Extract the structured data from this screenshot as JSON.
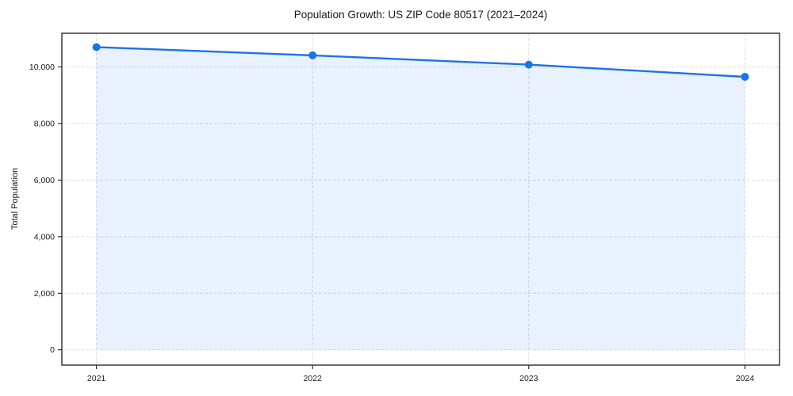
{
  "figure": {
    "title": "Population Growth: US ZIP Code 80517 (2021–2024)",
    "ylabel": "Total Population"
  },
  "chart_data": {
    "type": "line",
    "title": "Population Growth: US ZIP Code 80517 (2021–2024)",
    "xlabel": "",
    "ylabel": "Total Population",
    "x": [
      2021,
      2022,
      2023,
      2024
    ],
    "x_tick_labels": [
      "2021",
      "2022",
      "2023",
      "2024"
    ],
    "series": [
      {
        "name": "Total Population",
        "values": [
          10700,
          10410,
          10080,
          9650
        ]
      }
    ],
    "area_fill_to": 0,
    "xlim": [
      2020.84,
      2024.16
    ],
    "ylim": [
      -540,
      11190
    ],
    "yticks": [
      0,
      2000,
      4000,
      6000,
      8000,
      10000
    ],
    "y_tick_labels": [
      "0",
      "2,000",
      "4,000",
      "6,000",
      "8,000",
      "10,000"
    ],
    "grid": true,
    "grid_style": "dashed",
    "legend": false,
    "colors": {
      "line": "#1a73e8",
      "marker": "#1a73e8",
      "fill": "#1a73e8",
      "fill_opacity": 0.1,
      "grid": "#dadada",
      "spine": "#1c1c1c",
      "text": "#1a1a1a",
      "background": "#ffffff"
    }
  }
}
